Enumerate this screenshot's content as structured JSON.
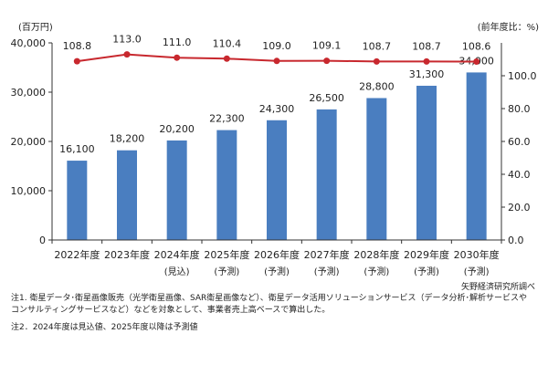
{
  "chart_data": {
    "type": "bar+line",
    "categories": [
      "2022年度",
      "2023年度",
      "2024年度",
      "2025年度",
      "2026年度",
      "2027年度",
      "2028年度",
      "2029年度",
      "2030年度"
    ],
    "category_sublabels": [
      "",
      "",
      "(見込)",
      "(予測)",
      "(予測)",
      "(予測)",
      "(予測)",
      "(予測)",
      "(予測)"
    ],
    "bars": {
      "values": [
        16100,
        18200,
        20200,
        22300,
        24300,
        26500,
        28800,
        31300,
        34000
      ],
      "labels": [
        "16,100",
        "18,200",
        "20,200",
        "22,300",
        "24,300",
        "26,500",
        "28,800",
        "31,300",
        "34,000"
      ],
      "color": "#4a7ec0",
      "axis": "left"
    },
    "line": {
      "values": [
        108.8,
        113.0,
        111.0,
        110.4,
        109.0,
        109.1,
        108.7,
        108.7,
        108.6
      ],
      "labels": [
        "108.8",
        "113.0",
        "111.0",
        "110.4",
        "109.0",
        "109.1",
        "108.7",
        "108.7",
        "108.6"
      ],
      "color": "#c8282e",
      "axis": "right"
    },
    "left_axis": {
      "unit": "(百万円)",
      "ylim": [
        0,
        40000
      ],
      "ticks": [
        0,
        10000,
        20000,
        30000,
        40000
      ],
      "tick_labels": [
        "0",
        "10,000",
        "20,000",
        "30,000",
        "40,000"
      ]
    },
    "right_axis": {
      "unit": "(前年度比：%)",
      "ylim": [
        0,
        120
      ],
      "ticks": [
        0,
        20,
        40,
        60,
        80,
        100
      ],
      "tick_labels": [
        "0.0",
        "20.0",
        "40.0",
        "60.0",
        "80.0",
        "100.0"
      ]
    },
    "grid": false
  },
  "source": "矢野経済研究所調べ",
  "notes": [
    "注1. 衛星データ･衛星画像販売（光学衛星画像、SAR衛星画像など）、衛星データ活用ソリューションサービス（データ分析･解析サービスや",
    "コンサルティングサービスなど）などを対象として、事業者売上高ベースで算出した。",
    "注2．2024年度は見込値、2025年度以降は予測値"
  ]
}
